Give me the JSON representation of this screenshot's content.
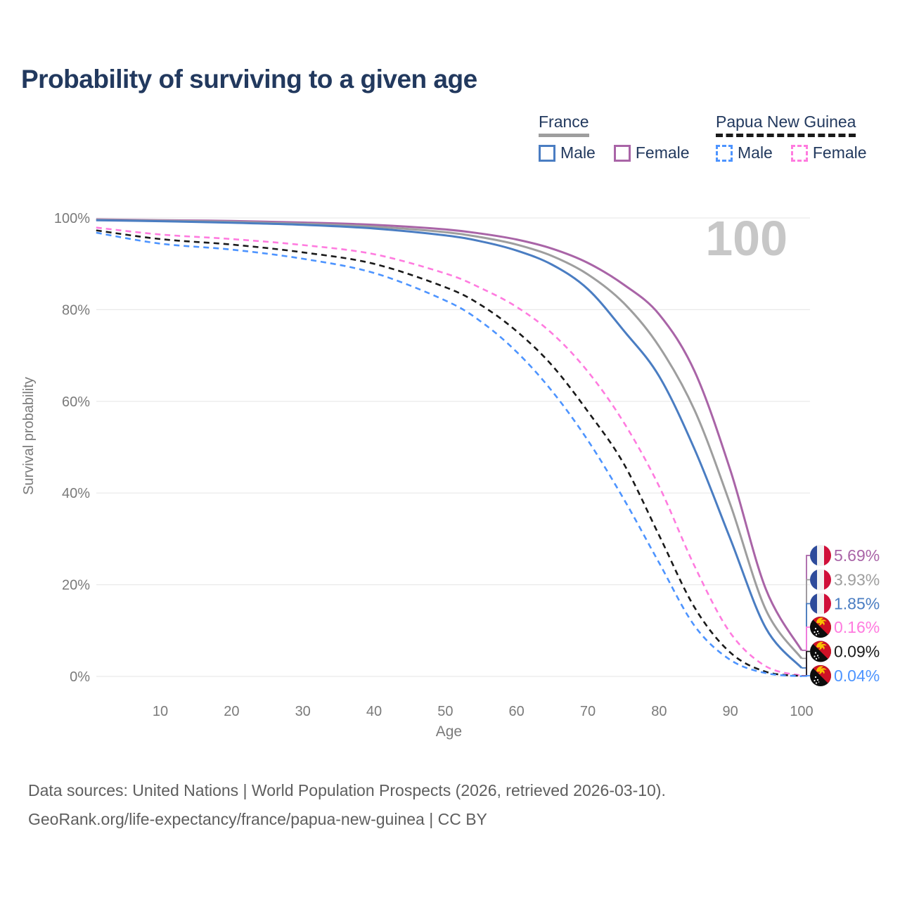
{
  "title": "Probability of surviving to a given age",
  "legend": {
    "groups": [
      {
        "label": "France",
        "underline_style": "solid",
        "underline_color": "#9e9e9e",
        "items": [
          {
            "label": "Male",
            "color": "#4A7DC2",
            "dashed": false
          },
          {
            "label": "Female",
            "color": "#A964A7",
            "dashed": false
          }
        ]
      },
      {
        "label": "Papua New Guinea",
        "underline_style": "dashed",
        "underline_color": "#1a1a1a",
        "items": [
          {
            "label": "Male",
            "color": "#4D94FF",
            "dashed": true
          },
          {
            "label": "Female",
            "color": "#FF7BDF",
            "dashed": true
          }
        ]
      }
    ]
  },
  "chart_data": {
    "type": "line",
    "title": "Probability of surviving to a given age",
    "xlabel": "Age",
    "ylabel": "Survival probability",
    "xlim": [
      1,
      100
    ],
    "ylim": [
      0,
      100
    ],
    "x_ticks": [
      10,
      20,
      30,
      40,
      50,
      60,
      70,
      80,
      90,
      100
    ],
    "y_ticks": [
      0,
      20,
      40,
      60,
      80,
      100
    ],
    "y_tick_labels": [
      "0%",
      "20%",
      "40%",
      "60%",
      "80%",
      "100%"
    ],
    "grid": "horizontal",
    "legend_position": "top-right",
    "watermark": "100",
    "axis_text_color": "#7a7a7a",
    "grid_color": "#e9e9e9",
    "watermark_color": "#c7c7c7",
    "series": [
      {
        "name": "France Female",
        "country": "France",
        "sex": "Female",
        "color": "#A964A7",
        "dashed": false,
        "flag": "fr",
        "end_label": "5.69%",
        "points": [
          [
            1,
            99.7
          ],
          [
            10,
            99.5
          ],
          [
            20,
            99.35
          ],
          [
            30,
            99.0
          ],
          [
            40,
            98.5
          ],
          [
            50,
            97.5
          ],
          [
            55,
            96.6
          ],
          [
            60,
            95.3
          ],
          [
            65,
            93.3
          ],
          [
            70,
            90.2
          ],
          [
            75,
            85.5
          ],
          [
            80,
            79.0
          ],
          [
            85,
            66.5
          ],
          [
            90,
            45.0
          ],
          [
            95,
            19.0
          ],
          [
            100,
            5.69
          ]
        ]
      },
      {
        "name": "France Both sexes",
        "country": "France",
        "sex": "Both",
        "color": "#9E9E9E",
        "dashed": false,
        "flag": "fr",
        "end_label": "3.93%",
        "points": [
          [
            1,
            99.6
          ],
          [
            10,
            99.4
          ],
          [
            20,
            99.15
          ],
          [
            30,
            98.75
          ],
          [
            40,
            98.1
          ],
          [
            50,
            96.9
          ],
          [
            55,
            95.8
          ],
          [
            60,
            94.2
          ],
          [
            65,
            91.7
          ],
          [
            70,
            87.7
          ],
          [
            75,
            81.5
          ],
          [
            80,
            72.0
          ],
          [
            85,
            58.0
          ],
          [
            90,
            37.5
          ],
          [
            95,
            14.5
          ],
          [
            100,
            3.93
          ]
        ]
      },
      {
        "name": "France Male",
        "country": "France",
        "sex": "Male",
        "color": "#4A7DC2",
        "dashed": false,
        "flag": "fr",
        "end_label": "1.85%",
        "points": [
          [
            1,
            99.5
          ],
          [
            10,
            99.3
          ],
          [
            20,
            98.95
          ],
          [
            30,
            98.5
          ],
          [
            40,
            97.7
          ],
          [
            50,
            96.2
          ],
          [
            55,
            94.9
          ],
          [
            60,
            92.9
          ],
          [
            65,
            89.8
          ],
          [
            70,
            84.5
          ],
          [
            75,
            75.5
          ],
          [
            80,
            65.5
          ],
          [
            85,
            49.5
          ],
          [
            90,
            30.0
          ],
          [
            95,
            10.5
          ],
          [
            100,
            1.85
          ]
        ]
      },
      {
        "name": "Papua New Guinea Female",
        "country": "Papua New Guinea",
        "sex": "Female",
        "color": "#FF7BDF",
        "dashed": true,
        "flag": "pg",
        "end_label": "0.16%",
        "points": [
          [
            1,
            97.9
          ],
          [
            10,
            96.4
          ],
          [
            20,
            95.4
          ],
          [
            30,
            94.1
          ],
          [
            40,
            92.1
          ],
          [
            50,
            87.9
          ],
          [
            55,
            84.7
          ],
          [
            60,
            80.6
          ],
          [
            65,
            74.8
          ],
          [
            70,
            66.5
          ],
          [
            75,
            55.5
          ],
          [
            80,
            41.5
          ],
          [
            85,
            24.0
          ],
          [
            90,
            9.5
          ],
          [
            95,
            2.2
          ],
          [
            100,
            0.16
          ]
        ]
      },
      {
        "name": "Papua New Guinea Both sexes",
        "country": "Papua New Guinea",
        "sex": "Both",
        "color": "#1A1A1A",
        "dashed": true,
        "flag": "pg",
        "end_label": "0.09%",
        "points": [
          [
            1,
            97.3
          ],
          [
            10,
            95.4
          ],
          [
            20,
            94.2
          ],
          [
            30,
            92.5
          ],
          [
            40,
            90.0
          ],
          [
            50,
            84.9
          ],
          [
            55,
            81.0
          ],
          [
            60,
            75.3
          ],
          [
            65,
            67.8
          ],
          [
            70,
            57.8
          ],
          [
            75,
            46.5
          ],
          [
            80,
            30.8
          ],
          [
            85,
            15.0
          ],
          [
            90,
            5.2
          ],
          [
            95,
            1.0
          ],
          [
            100,
            0.09
          ]
        ]
      },
      {
        "name": "Papua New Guinea Male",
        "country": "Papua New Guinea",
        "sex": "Male",
        "color": "#4D94FF",
        "dashed": true,
        "flag": "pg",
        "end_label": "0.04%",
        "points": [
          [
            1,
            96.8
          ],
          [
            10,
            94.4
          ],
          [
            20,
            93.1
          ],
          [
            30,
            91.1
          ],
          [
            40,
            88.0
          ],
          [
            50,
            82.0
          ],
          [
            55,
            77.4
          ],
          [
            60,
            70.8
          ],
          [
            65,
            62.2
          ],
          [
            70,
            51.5
          ],
          [
            75,
            38.8
          ],
          [
            80,
            24.8
          ],
          [
            85,
            11.0
          ],
          [
            90,
            3.6
          ],
          [
            95,
            0.7
          ],
          [
            100,
            0.04
          ]
        ]
      }
    ]
  },
  "footer": {
    "line1": "Data sources: United Nations | World Population Prospects (2026, retrieved 2026-03-10).",
    "line2": "GeoRank.org/life-expectancy/france/papua-new-guinea | CC BY"
  }
}
